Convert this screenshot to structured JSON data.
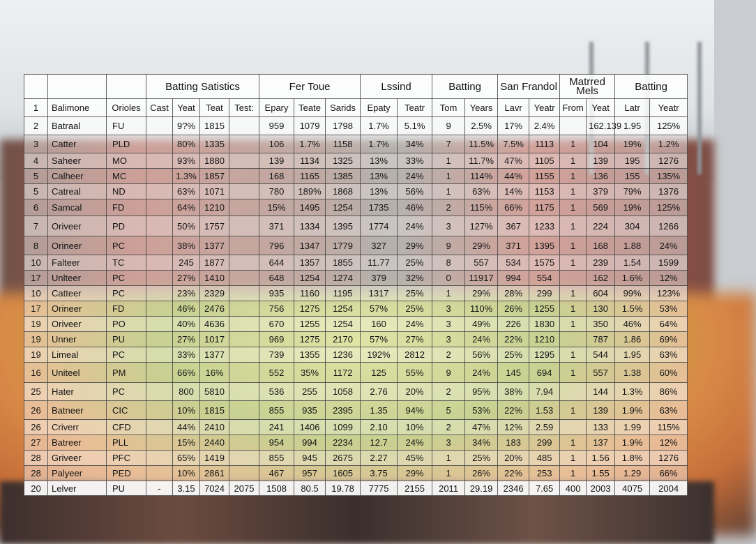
{
  "header": {
    "groups": [
      "Batting Satistics",
      "Fer Toue",
      "Lssind",
      "Batting",
      "San Frandol",
      "Matrred\nMels",
      "Batting"
    ]
  },
  "subheader": [
    "1",
    "Balimone",
    "Orioles",
    "Cast",
    "Yeat",
    "Teat",
    "Test:",
    "Epary",
    "Teate",
    "Sarids",
    "Epaty",
    "Teatr",
    "Tom",
    "Years",
    "Lavr",
    "Yeatr",
    "From",
    "Yeat",
    "Latr",
    "Yeatr"
  ],
  "rows": [
    [
      "2",
      "Batraal",
      "FU",
      "",
      "9?%",
      "1815",
      "",
      "959",
      "1079",
      "1798",
      "1.7%",
      "5.1%",
      "9",
      "2.5%",
      "17%",
      "2.4%",
      "",
      "162.139",
      "1.95",
      "125%"
    ],
    [
      "3",
      "Catter",
      "PLD",
      "",
      "80%",
      "1335",
      "",
      "106",
      "1.7%",
      "1158",
      "1.7%",
      "34%",
      "7",
      "11.5%",
      "7.5%",
      "1113",
      "1",
      "104",
      "19%",
      "1.2%"
    ],
    [
      "4",
      "Saheer",
      "MO",
      "",
      "93%",
      "1880",
      "",
      "139",
      "1134",
      "1325",
      "13%",
      "33%",
      "1",
      "11.7%",
      "47%",
      "1105",
      "1",
      "139",
      "195",
      "1276"
    ],
    [
      "5",
      "Calheer",
      "MC",
      "",
      "1.3%",
      "1857",
      "",
      "168",
      "1165",
      "1385",
      "13%",
      "24%",
      "1",
      "114%",
      "44%",
      "1155",
      "1",
      "136",
      "155",
      "135%"
    ],
    [
      "5",
      "Catreal",
      "ND",
      "",
      "63%",
      "1071",
      "",
      "780",
      "189%",
      "1868",
      "13%",
      "56%",
      "1",
      "63%",
      "14%",
      "1153",
      "1",
      "379",
      "79%",
      "1376"
    ],
    [
      "6",
      "Samcal",
      "FD",
      "",
      "64%",
      "1210",
      "",
      "15%",
      "1495",
      "1254",
      "1735",
      "46%",
      "2",
      "115%",
      "66%",
      "1175",
      "1",
      "569",
      "19%",
      "125%"
    ],
    [
      "7",
      "Oriveer",
      "PD",
      "",
      "50%",
      "1757",
      "",
      "371",
      "1334",
      "1395",
      "1774",
      "24%",
      "3",
      "127%",
      "367",
      "1233",
      "1",
      "224",
      "304",
      "1266"
    ],
    [
      "8",
      "Orineer",
      "PC",
      "",
      "38%",
      "1377",
      "",
      "796",
      "1347",
      "1779",
      "327",
      "29%",
      "9",
      "29%",
      "371",
      "1395",
      "1",
      "168",
      "1.88",
      "24%"
    ],
    [
      "10",
      "Falteer",
      "TC",
      "",
      "245",
      "1877",
      "",
      "644",
      "1357",
      "1855",
      "11.77",
      "25%",
      "8",
      "557",
      "534",
      "1575",
      "1",
      "239",
      "1.54",
      "1599"
    ],
    [
      "17",
      "Unlteer",
      "PC",
      "",
      "27%",
      "1410",
      "",
      "648",
      "1254",
      "1274",
      "379",
      "32%",
      "0",
      "11917",
      "994",
      "554",
      "",
      "162",
      "1.6%",
      "12%"
    ],
    [
      "10",
      "Catteer",
      "PC",
      "",
      "23%",
      "2329",
      "",
      "935",
      "1160",
      "1195",
      "1317",
      "25%",
      "1",
      "29%",
      "28%",
      "299",
      "1",
      "604",
      "99%",
      "123%"
    ],
    [
      "17",
      "Orineer",
      "FD",
      "",
      "46%",
      "2476",
      "",
      "756",
      "1275",
      "1254",
      "57%",
      "25%",
      "3",
      "110%",
      "26%",
      "1255",
      "1",
      "130",
      "1.5%",
      "53%"
    ],
    [
      "19",
      "Oriveer",
      "PO",
      "",
      "40%",
      "4636",
      "",
      "670",
      "1255",
      "1254",
      "160",
      "24%",
      "3",
      "49%",
      "226",
      "1830",
      "1",
      "350",
      "46%",
      "64%"
    ],
    [
      "19",
      "Unner",
      "PU",
      "",
      "27%",
      "1017",
      "",
      "969",
      "1275",
      "2170",
      "57%",
      "27%",
      "3",
      "24%",
      "22%",
      "1210",
      "",
      "787",
      "1.86",
      "69%"
    ],
    [
      "19",
      "Limeal",
      "PC",
      "",
      "33%",
      "1377",
      "",
      "739",
      "1355",
      "1236",
      "192%",
      "2812",
      "2",
      "56%",
      "25%",
      "1295",
      "1",
      "544",
      "1.95",
      "63%"
    ],
    [
      "16",
      "Uniteel",
      "PM",
      "",
      "66%",
      "16%",
      "",
      "552",
      "35%",
      "1172",
      "125",
      "55%",
      "9",
      "24%",
      "145",
      "694",
      "1",
      "557",
      "1.38",
      "60%"
    ],
    [
      "25",
      "Hater",
      "PC",
      "",
      "800",
      "5810",
      "",
      "536",
      "255",
      "1058",
      "2.76",
      "20%",
      "2",
      "95%",
      "38%",
      "7.94",
      "",
      "144",
      "1.3%",
      "86%"
    ],
    [
      "26",
      "Batneer",
      "CIC",
      "",
      "10%",
      "1815",
      "",
      "855",
      "935",
      "2395",
      "1.35",
      "94%",
      "5",
      "53%",
      "22%",
      "1.53",
      "1",
      "139",
      "1.9%",
      "63%"
    ],
    [
      "26",
      "Criverr",
      "CFD",
      "",
      "44%",
      "2410",
      "",
      "241",
      "1406",
      "1099",
      "2.10",
      "10%",
      "2",
      "47%",
      "12%",
      "2.59",
      "",
      "133",
      "1.99",
      "115%"
    ],
    [
      "27",
      "Batreer",
      "PLL",
      "",
      "15%",
      "2440",
      "",
      "954",
      "994",
      "2234",
      "12.7",
      "24%",
      "3",
      "34%",
      "183",
      "299",
      "1",
      "137",
      "1.9%",
      "12%"
    ],
    [
      "28",
      "Griveer",
      "PFC",
      "",
      "65%",
      "1419",
      "",
      "855",
      "945",
      "2675",
      "2.27",
      "45%",
      "1",
      "25%",
      "20%",
      "485",
      "1",
      "1.56",
      "1.8%",
      "1276"
    ],
    [
      "28",
      "Palyeer",
      "PED",
      "",
      "10%",
      "2861",
      "",
      "467",
      "957",
      "1605",
      "3.75",
      "29%",
      "1",
      "26%",
      "22%",
      "253",
      "1",
      "1.55",
      "1.29",
      "66%"
    ],
    [
      "20",
      "Lelver",
      "PU",
      "-",
      "3.15",
      "7024",
      "2075",
      "1508",
      "80.5",
      "19.78",
      "7775",
      "2155",
      "2011",
      "29.19",
      "2346",
      "7.65",
      "400",
      "2003",
      "4075",
      "2004"
    ]
  ],
  "colors": {
    "grid": "#464646",
    "text": "#141414"
  }
}
